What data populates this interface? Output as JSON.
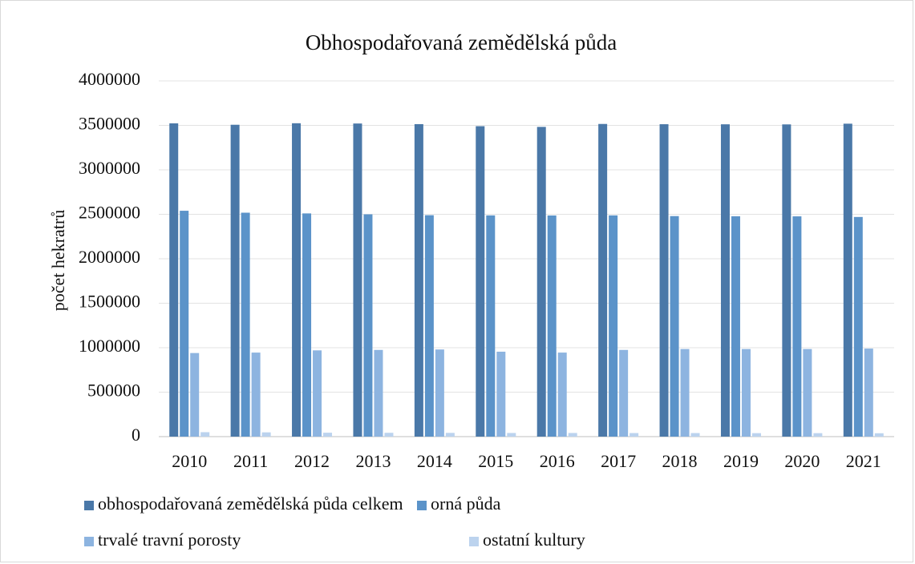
{
  "chart_data": {
    "type": "bar",
    "title": "Obhospodařovaná zemědělská půda",
    "ylabel": "počet hekratrů",
    "categories": [
      "2010",
      "2011",
      "2012",
      "2013",
      "2014",
      "2015",
      "2016",
      "2017",
      "2018",
      "2019",
      "2020",
      "2021"
    ],
    "series": [
      {
        "name": "obhospodařovaná zemědělská půda celkem",
        "color": "#4a78a8",
        "values": [
          3523000,
          3507000,
          3524000,
          3521000,
          3514000,
          3491000,
          3483000,
          3516000,
          3513000,
          3512000,
          3511000,
          3519000
        ]
      },
      {
        "name": "orná půda",
        "color": "#5b93c9",
        "values": [
          2540000,
          2518000,
          2510000,
          2500000,
          2490000,
          2488000,
          2487000,
          2488000,
          2480000,
          2478000,
          2477000,
          2470000
        ]
      },
      {
        "name": "trvalé travní porosty",
        "color": "#8db4e0",
        "values": [
          940000,
          945000,
          970000,
          975000,
          980000,
          955000,
          945000,
          975000,
          985000,
          985000,
          985000,
          990000
        ]
      },
      {
        "name": "ostatní kultury",
        "color": "#bcd3ee",
        "values": [
          50000,
          48000,
          44000,
          43000,
          42000,
          41000,
          41000,
          40000,
          40000,
          39000,
          39000,
          38000
        ]
      }
    ],
    "ylim": [
      0,
      4000000
    ],
    "yticks": [
      0,
      500000,
      1000000,
      1500000,
      2000000,
      2500000,
      3000000,
      3500000,
      4000000
    ],
    "grid": true,
    "legend": "bottom"
  }
}
